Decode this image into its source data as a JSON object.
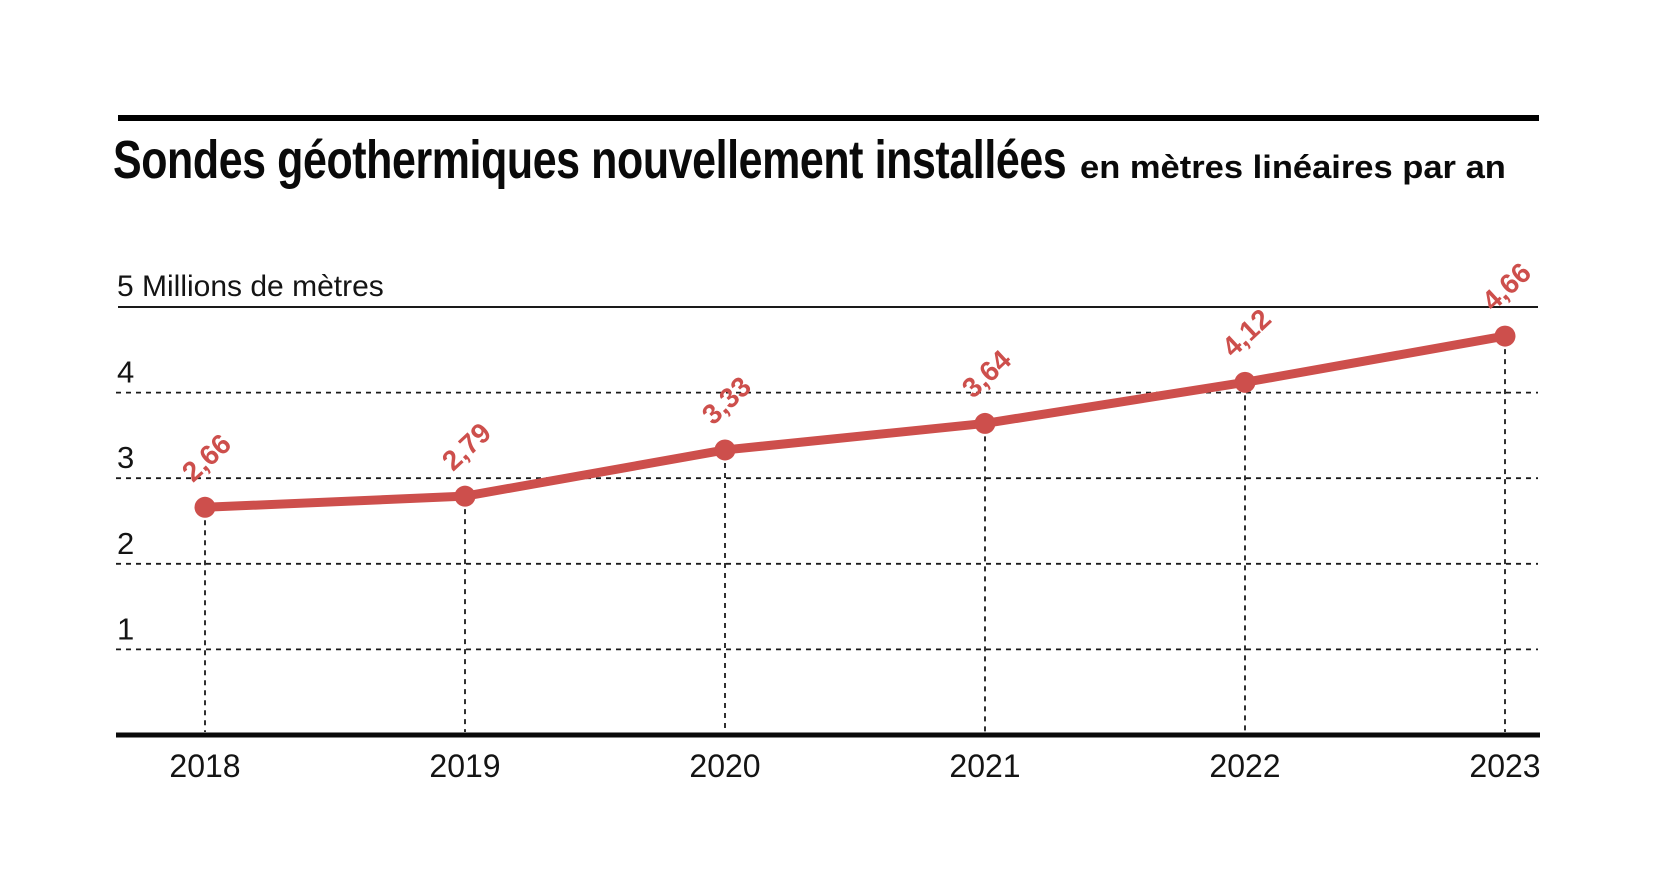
{
  "chart_data": {
    "type": "line",
    "title": "Sondes géothermiques nouvellement installées",
    "subtitle": "en mètres linéaires par an",
    "y_top_label": "5 Millions de mètres",
    "x": [
      "2018",
      "2019",
      "2020",
      "2021",
      "2022",
      "2023"
    ],
    "values": [
      2.66,
      2.79,
      3.33,
      3.64,
      4.12,
      4.66
    ],
    "point_labels": [
      "2,66",
      "2,79",
      "3,33",
      "3,64",
      "4,12",
      "4,66"
    ],
    "yticks": [
      4,
      3,
      2,
      1
    ],
    "ylim": [
      0,
      5
    ],
    "xlabel": "",
    "ylabel": "Millions de mètres",
    "grid": "dashed",
    "legend": "none",
    "line_color": "#cd4f4c",
    "axis_color": "#0a0a0a",
    "text_color": "#141414"
  }
}
